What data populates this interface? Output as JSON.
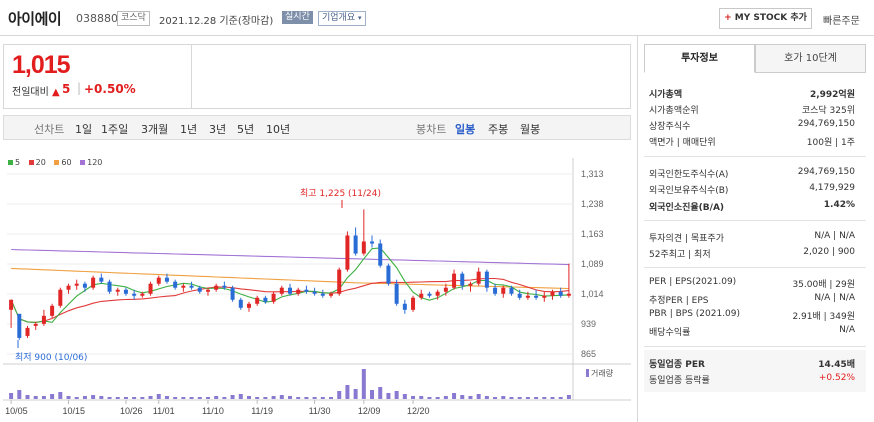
{
  "header": {
    "name": "아이에이",
    "code": "038880",
    "market": "코스닥",
    "date": "2021.12.28  기준(장마감)",
    "realtime": "실시간",
    "company_info": "기업개요",
    "mystock": "MY STOCK 추가",
    "mystock_plus": "+",
    "quick_order": "빠른주문"
  },
  "price": {
    "current": "1,015",
    "change_label": "전일대비",
    "change_value": "5",
    "change_sep": "|",
    "change_pct": "+0.50%"
  },
  "period": {
    "line_label": "선차트",
    "line_items": [
      "1일",
      "1주일",
      "3개월",
      "1년",
      "3년",
      "5년",
      "10년"
    ],
    "candle_label": "봉차트",
    "candle_items": [
      "일봉",
      "주봉",
      "월봉"
    ],
    "candle_active": "일봉"
  },
  "legend": [
    {
      "label": "5",
      "color": "#3cb043"
    },
    {
      "label": "20",
      "color": "#e23b3b"
    },
    {
      "label": "60",
      "color": "#f0a040"
    },
    {
      "label": "120",
      "color": "#a374d6"
    }
  ],
  "chart_data": {
    "type": "candlestick",
    "y_ticks": [
      "1,313",
      "1,238",
      "1,163",
      "1,089",
      "1,014",
      "939",
      "865"
    ],
    "x_ticks": [
      "10/05",
      "10/15",
      "10/26",
      "11/01",
      "11/10",
      "11/19",
      "11/30",
      "12/09",
      "12/20"
    ],
    "high_annotation": "최고 1,225 (11/24)",
    "low_annotation": "최저 900 (10/06)",
    "volume_label": "거래량",
    "ylim": [
      865,
      1313
    ],
    "candles": [
      [
        975,
        1000,
        930,
        1000
      ],
      [
        965,
        965,
        900,
        905
      ],
      [
        910,
        935,
        905,
        930
      ],
      [
        935,
        945,
        925,
        940
      ],
      [
        940,
        975,
        935,
        960
      ],
      [
        960,
        990,
        955,
        985
      ],
      [
        985,
        1030,
        980,
        1025
      ],
      [
        1025,
        1040,
        1015,
        1035
      ],
      [
        1035,
        1050,
        1025,
        1040
      ],
      [
        1040,
        1045,
        1020,
        1030
      ],
      [
        1030,
        1060,
        1025,
        1055
      ],
      [
        1055,
        1065,
        1040,
        1045
      ],
      [
        1045,
        1050,
        1015,
        1020
      ],
      [
        1020,
        1030,
        1010,
        1025
      ],
      [
        1025,
        1030,
        1010,
        1015
      ],
      [
        1015,
        1025,
        1000,
        1010
      ],
      [
        1010,
        1020,
        1005,
        1015
      ],
      [
        1015,
        1045,
        1010,
        1040
      ],
      [
        1040,
        1060,
        1035,
        1055
      ],
      [
        1055,
        1065,
        1040,
        1045
      ],
      [
        1045,
        1050,
        1025,
        1030
      ],
      [
        1030,
        1040,
        1020,
        1035
      ],
      [
        1035,
        1045,
        1025,
        1030
      ],
      [
        1030,
        1035,
        1015,
        1020
      ],
      [
        1020,
        1030,
        1010,
        1025
      ],
      [
        1025,
        1040,
        1020,
        1035
      ],
      [
        1035,
        1045,
        1025,
        1030
      ],
      [
        1030,
        1035,
        995,
        1000
      ],
      [
        1000,
        1005,
        975,
        980
      ],
      [
        980,
        995,
        970,
        990
      ],
      [
        990,
        1010,
        985,
        1005
      ],
      [
        1005,
        1010,
        990,
        995
      ],
      [
        995,
        1020,
        990,
        1015
      ],
      [
        1015,
        1035,
        1010,
        1030
      ],
      [
        1030,
        1040,
        1010,
        1015
      ],
      [
        1015,
        1030,
        1010,
        1025
      ],
      [
        1025,
        1035,
        1015,
        1020
      ],
      [
        1020,
        1030,
        1010,
        1015
      ],
      [
        1015,
        1025,
        1005,
        1010
      ],
      [
        1010,
        1020,
        1005,
        1015
      ],
      [
        1015,
        1080,
        1010,
        1075
      ],
      [
        1075,
        1170,
        1070,
        1160
      ],
      [
        1160,
        1180,
        1110,
        1115
      ],
      [
        1115,
        1225,
        1110,
        1145
      ],
      [
        1145,
        1160,
        1130,
        1140
      ],
      [
        1140,
        1150,
        1080,
        1085
      ],
      [
        1085,
        1090,
        1035,
        1040
      ],
      [
        1040,
        1050,
        985,
        990
      ],
      [
        990,
        1000,
        965,
        975
      ],
      [
        975,
        1010,
        970,
        1005
      ],
      [
        1005,
        1025,
        1000,
        1015
      ],
      [
        1015,
        1020,
        1005,
        1010
      ],
      [
        1010,
        1025,
        1000,
        1020
      ],
      [
        1020,
        1040,
        1010,
        1030
      ],
      [
        1030,
        1075,
        1025,
        1065
      ],
      [
        1065,
        1070,
        1025,
        1035
      ],
      [
        1035,
        1045,
        1020,
        1040
      ],
      [
        1040,
        1080,
        1035,
        1070
      ],
      [
        1070,
        1075,
        1020,
        1030
      ],
      [
        1030,
        1040,
        1010,
        1015
      ],
      [
        1015,
        1035,
        1005,
        1030
      ],
      [
        1030,
        1035,
        1010,
        1015
      ],
      [
        1015,
        1025,
        1000,
        1005
      ],
      [
        1005,
        1020,
        1000,
        1010
      ],
      [
        1010,
        1025,
        1000,
        1005
      ],
      [
        1005,
        1020,
        995,
        1010
      ],
      [
        1010,
        1025,
        1000,
        1020
      ],
      [
        1020,
        1030,
        1005,
        1010
      ],
      [
        1010,
        1090,
        1005,
        1015
      ]
    ],
    "volume": [
      6,
      9,
      4,
      3,
      3,
      5,
      7,
      3,
      2,
      3,
      4,
      3,
      2,
      2,
      2,
      2,
      2,
      3,
      5,
      3,
      2,
      2,
      2,
      2,
      2,
      3,
      2,
      4,
      5,
      3,
      2,
      2,
      3,
      4,
      3,
      2,
      2,
      2,
      2,
      2,
      8,
      14,
      10,
      30,
      9,
      12,
      6,
      8,
      5,
      3,
      3,
      2,
      2,
      3,
      6,
      4,
      3,
      5,
      3,
      2,
      3,
      2,
      2,
      2,
      2,
      2,
      2,
      2,
      4
    ]
  },
  "invest": {
    "tab_active": "투자정보",
    "tab_other": "호가 10단계",
    "rows": [
      {
        "k": "시가총액",
        "v": "2,992억원",
        "bold": true
      },
      {
        "k": "시가총액순위",
        "v": "코스닥 325위"
      },
      {
        "k": "상장주식수",
        "v": "294,769,150"
      },
      {
        "k": "액면가 | 매매단위",
        "v": "100원 | 1주"
      },
      {
        "k": "외국인한도주식수(A)",
        "v": "294,769,150"
      },
      {
        "k": "외국인보유주식수(B)",
        "v": "4,179,929"
      },
      {
        "k": "외국인소진율(B/A)",
        "v": "1.42%",
        "bold": true
      },
      {
        "k": "투자의견 | 목표주가",
        "v": "N/A | N/A"
      },
      {
        "k": "52주최고 | 최저",
        "v": "2,020 | 900"
      },
      {
        "k": "PER | EPS(2021.09)",
        "v": "35.00배 | 29원"
      },
      {
        "k": "추정PER | EPS",
        "v": "N/A | N/A"
      },
      {
        "k": "PBR | BPS (2021.09)",
        "v": "2.91배 | 349원"
      },
      {
        "k": "배당수익률",
        "v": "N/A"
      },
      {
        "k": "동일업종 PER",
        "v": "14.45배",
        "bold": true
      },
      {
        "k": "동일업종 등락률",
        "v": "+0.52%",
        "red": true
      }
    ]
  }
}
